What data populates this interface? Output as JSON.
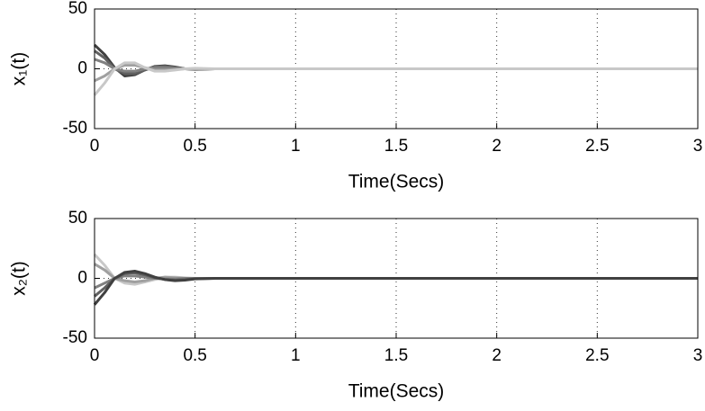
{
  "chart_data": [
    {
      "type": "line",
      "ylabel": "x₁(t)",
      "xlabel": "Time(Secs)",
      "xlim": [
        0,
        3
      ],
      "xticks": [
        0,
        0.5,
        1,
        1.5,
        2,
        2.5,
        3
      ],
      "ylim": [
        -50,
        50
      ],
      "yticks": [
        -50,
        0,
        50
      ],
      "grid": true,
      "x": [
        0,
        0.05,
        0.1,
        0.15,
        0.2,
        0.25,
        0.3,
        0.35,
        0.4,
        0.45,
        0.5,
        0.6,
        0.8,
        1,
        1.5,
        2,
        2.5,
        3
      ],
      "series": [
        {
          "color": "#404040",
          "values": [
            20,
            12,
            1,
            -6,
            -5,
            -1,
            2,
            2.5,
            1.5,
            0,
            -0.5,
            0,
            0,
            0,
            0,
            0,
            0,
            0
          ]
        },
        {
          "color": "#606060",
          "values": [
            15,
            9,
            0,
            -4,
            -4,
            -1,
            1.5,
            2,
            1,
            0,
            -0.3,
            0,
            0,
            0,
            0,
            0,
            0,
            0
          ]
        },
        {
          "color": "#808080",
          "values": [
            8,
            5,
            0,
            -2,
            -2,
            0,
            1,
            1,
            0.5,
            0,
            0,
            0,
            0,
            0,
            0,
            0,
            0,
            0
          ]
        },
        {
          "color": "#a0a0a0",
          "values": [
            -10,
            -6,
            0,
            3,
            3,
            1,
            -1,
            -1,
            -0.5,
            0,
            0,
            0,
            0,
            0,
            0,
            0,
            0,
            0
          ]
        },
        {
          "color": "#c8c8c8",
          "values": [
            -22,
            -12,
            0,
            5,
            5,
            1,
            -2,
            -2,
            -1,
            0,
            0.5,
            0,
            0,
            0,
            0,
            0,
            0,
            0
          ]
        }
      ]
    },
    {
      "type": "line",
      "ylabel": "x₂(t)",
      "xlabel": "Time(Secs)",
      "xlim": [
        0,
        3
      ],
      "xticks": [
        0,
        0.5,
        1,
        1.5,
        2,
        2.5,
        3
      ],
      "ylim": [
        -50,
        50
      ],
      "yticks": [
        -50,
        0,
        50
      ],
      "grid": true,
      "x": [
        0,
        0.05,
        0.1,
        0.15,
        0.2,
        0.25,
        0.3,
        0.35,
        0.4,
        0.45,
        0.5,
        0.6,
        0.8,
        1,
        1.5,
        2,
        2.5,
        3
      ],
      "series": [
        {
          "color": "#c8c8c8",
          "values": [
            20,
            11,
            0,
            -4,
            -5,
            -3,
            -1,
            1,
            1,
            0.5,
            0,
            0,
            0,
            0,
            0,
            0,
            0,
            0
          ]
        },
        {
          "color": "#a0a0a0",
          "values": [
            12,
            7,
            0,
            -2,
            -3,
            -2,
            0,
            1,
            0.5,
            0,
            0,
            0,
            0,
            0,
            0,
            0,
            0,
            0
          ]
        },
        {
          "color": "#808080",
          "values": [
            -8,
            -4,
            0,
            2,
            2,
            1,
            0,
            -0.5,
            -0.5,
            0,
            0,
            0,
            0,
            0,
            0,
            0,
            0,
            0
          ]
        },
        {
          "color": "#606060",
          "values": [
            -15,
            -8,
            0,
            4,
            4.5,
            3,
            0.5,
            -1,
            -1.5,
            -1,
            -0.3,
            0,
            0,
            0,
            0,
            0,
            0,
            0
          ]
        },
        {
          "color": "#404040",
          "values": [
            -22,
            -12,
            0,
            5,
            6,
            4,
            1,
            -1,
            -2,
            -1.5,
            -0.5,
            0,
            0,
            0,
            0,
            0,
            0,
            0
          ]
        }
      ]
    }
  ]
}
